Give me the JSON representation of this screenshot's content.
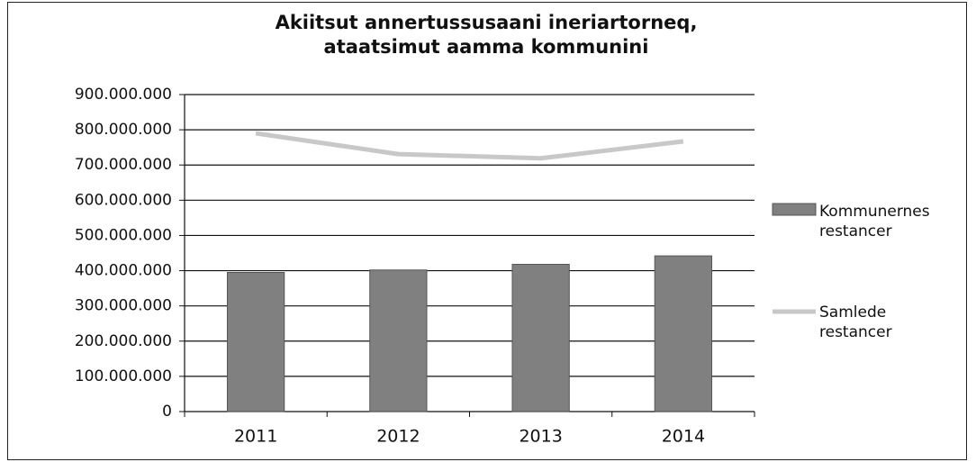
{
  "chart_data": {
    "type": "bar-line",
    "title": "Akiitsut annertussusaani ineriartorneq, ataatsimut aamma kommunini",
    "categories": [
      "2011",
      "2012",
      "2013",
      "2014"
    ],
    "series": [
      {
        "name": "Kommunernes restancer",
        "type": "bar",
        "color": "#808080",
        "values": [
          395000000,
          402000000,
          418000000,
          442000000
        ]
      },
      {
        "name": "Samlede restancer",
        "type": "line",
        "color": "#c8c8c8",
        "values": [
          790000000,
          731000000,
          719000000,
          767000000
        ]
      }
    ],
    "ylim": [
      0,
      900000000
    ],
    "yticks": [
      0,
      {
        "value": 100000000,
        "label": "100.000.000"
      },
      {
        "value": 200000000,
        "label": "200.000.000"
      },
      {
        "value": 300000000,
        "label": "300.000.000"
      },
      {
        "value": 400000000,
        "label": "400.000.000"
      },
      {
        "value": 500000000,
        "label": "500.000.000"
      },
      {
        "value": 600000000,
        "label": "600.000.000"
      },
      {
        "value": 700000000,
        "label": "700.000.000"
      },
      {
        "value": 800000000,
        "label": "800.000.000"
      },
      {
        "value": 900000000,
        "label": "900.000.000"
      }
    ],
    "grid": true,
    "legend": "right"
  }
}
